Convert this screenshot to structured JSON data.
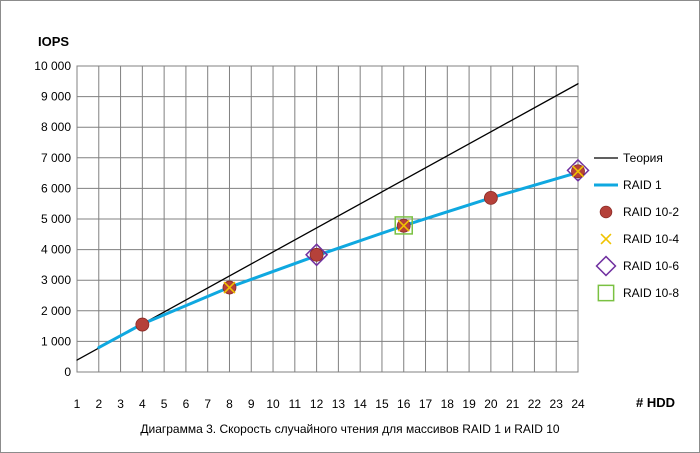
{
  "chart_data": {
    "type": "line",
    "caption": "Диаграмма 3. Скорость случайного чтения для массивов RAID 1  и RAID 10",
    "ylabel": "IOPS",
    "xlabel": "# HDD",
    "x_ticks": [
      1,
      2,
      3,
      4,
      5,
      6,
      7,
      8,
      9,
      10,
      11,
      12,
      13,
      14,
      15,
      16,
      17,
      18,
      19,
      20,
      21,
      22,
      23,
      24
    ],
    "xlim": [
      1,
      24
    ],
    "ylim": [
      0,
      10000
    ],
    "y_ticks": [
      0,
      1000,
      2000,
      3000,
      4000,
      5000,
      6000,
      7000,
      8000,
      9000,
      10000
    ],
    "y_tick_labels": [
      "0",
      "1 000",
      "2 000",
      "3 000",
      "4 000",
      "5 000",
      "6 000",
      "7 000",
      "8 000",
      "9 000",
      "10 000"
    ],
    "grid": true,
    "legend_position": "right",
    "series": [
      {
        "name": "Теория",
        "kind": "line",
        "color": "#000000",
        "x": [
          1,
          24
        ],
        "y": [
          390,
          9420
        ]
      },
      {
        "name": "RAID 1",
        "kind": "line",
        "color": "#0fa8e0",
        "x": [
          2,
          4,
          8,
          12,
          16,
          20,
          24
        ],
        "y": [
          800,
          1570,
          2770,
          3800,
          4780,
          5690,
          6520
        ]
      },
      {
        "name": "RAID 10-2",
        "kind": "marker",
        "marker": "circle",
        "color": "#b5413a",
        "x": [
          4,
          8,
          12,
          16,
          20,
          24
        ],
        "y": [
          1550,
          2760,
          3830,
          4780,
          5690,
          6560
        ]
      },
      {
        "name": "RAID 10-4",
        "kind": "marker",
        "marker": "x",
        "color": "#f0c300",
        "x": [
          8,
          16,
          24
        ],
        "y": [
          2760,
          4780,
          6560
        ]
      },
      {
        "name": "RAID 10-6",
        "kind": "marker",
        "marker": "diamond",
        "color": "#7030a0",
        "x": [
          12,
          24
        ],
        "y": [
          3830,
          6590
        ]
      },
      {
        "name": "RAID 10-8",
        "kind": "marker",
        "marker": "square",
        "color": "#7ac142",
        "x": [
          16
        ],
        "y": [
          4790
        ]
      }
    ]
  }
}
